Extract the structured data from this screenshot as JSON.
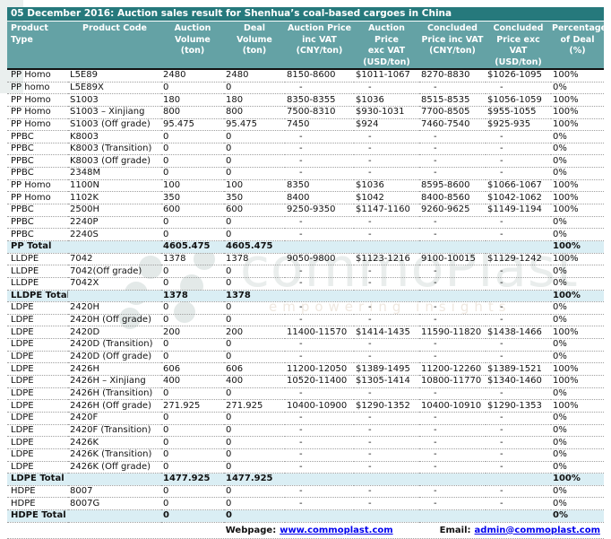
{
  "title": "05 December 2016: Auction sales result for Shenhua’s coal-based cargoes in China",
  "colors": {
    "title_bar": "#26797c",
    "header_bg": "#64a2a5",
    "total_bg": "#daeef4",
    "link": "#0000ee"
  },
  "watermark": {
    "brand": "commoPlast",
    "tagline": "empowering insights"
  },
  "table": {
    "columns": [
      "Product\nType",
      "Product Code",
      "Auction\nVolume (ton)",
      "Deal\nVolume\n(ton)",
      "Auction Price\ninc VAT\n(CNY/ton)",
      "Auction\nPrice\nexc VAT\n(USD/ton)",
      "Concluded\nPrice inc VAT\n(CNY/ton)",
      "Concluded\nPrice exc VAT\n(USD/ton)",
      "Percentage\nof Deal (%)"
    ],
    "rows": [
      {
        "type": "data",
        "cells": [
          "PP Homo",
          "L5E89",
          "2480",
          "2480",
          "8150-8600",
          "$1011-1067",
          "8270-8830",
          "$1026-1095",
          "100%"
        ]
      },
      {
        "type": "data",
        "cells": [
          "PP homo",
          "L5E89X",
          "0",
          "0",
          "-",
          "-",
          "-",
          "-",
          "0%"
        ]
      },
      {
        "type": "data",
        "cells": [
          "PP Homo",
          "S1003",
          "180",
          "180",
          "8350-8355",
          "$1036",
          "8515-8535",
          "$1056-1059",
          "100%"
        ]
      },
      {
        "type": "data",
        "cells": [
          "PP Homo",
          "S1003 – Xinjiang",
          "800",
          "800",
          "7500-8310",
          "$930-1031",
          "7700-8505",
          "$955-1055",
          "100%"
        ]
      },
      {
        "type": "data",
        "cells": [
          "PP Homo",
          "S1003 (Off grade)",
          "95.475",
          "95.475",
          "7450",
          "$924",
          "7460-7540",
          "$925-935",
          "100%"
        ]
      },
      {
        "type": "data",
        "cells": [
          "PPBC",
          "K8003",
          "0",
          "0",
          "-",
          "-",
          "-",
          "-",
          "0%"
        ]
      },
      {
        "type": "data",
        "cells": [
          "PPBC",
          "K8003 (Transition)",
          "0",
          "0",
          "-",
          "-",
          "-",
          "-",
          "0%"
        ]
      },
      {
        "type": "data",
        "cells": [
          "PPBC",
          "K8003 (Off grade)",
          "0",
          "0",
          "-",
          "-",
          "-",
          "-",
          "0%"
        ]
      },
      {
        "type": "data",
        "cells": [
          "PPBC",
          "2348M",
          "0",
          "0",
          "-",
          "-",
          "-",
          "-",
          "0%"
        ]
      },
      {
        "type": "data",
        "cells": [
          "PP Homo",
          "1100N",
          "100",
          "100",
          "8350",
          "$1036",
          "8595-8600",
          "$1066-1067",
          "100%"
        ]
      },
      {
        "type": "data",
        "cells": [
          "PP Homo",
          "1102K",
          "350",
          "350",
          "8400",
          "$1042",
          "8400-8560",
          "$1042-1062",
          "100%"
        ]
      },
      {
        "type": "data",
        "cells": [
          "PPBC",
          "2500H",
          "600",
          "600",
          "9250-9350",
          "$1147-1160",
          "9260-9625",
          "$1149-1194",
          "100%"
        ]
      },
      {
        "type": "data",
        "cells": [
          "PPBC",
          "2240P",
          "0",
          "0",
          "-",
          "-",
          "-",
          "-",
          "0%"
        ]
      },
      {
        "type": "data",
        "cells": [
          "PPBC",
          "2240S",
          "0",
          "0",
          "-",
          "-",
          "-",
          "-",
          "0%"
        ]
      },
      {
        "type": "total",
        "cells": [
          "PP Total",
          "",
          "4605.475",
          "4605.475",
          "",
          "",
          "",
          "",
          "100%"
        ]
      },
      {
        "type": "data",
        "cells": [
          "LLDPE",
          "7042",
          "1378",
          "1378",
          "9050-9800",
          "$1123-1216",
          "9100-10015",
          "$1129-1242",
          "100%"
        ]
      },
      {
        "type": "data",
        "cells": [
          "LLDPE",
          "7042(Off grade)",
          "0",
          "0",
          "-",
          "-",
          "-",
          "-",
          "0%"
        ]
      },
      {
        "type": "data",
        "cells": [
          "LLDPE",
          "7042X",
          "0",
          "0",
          "-",
          "-",
          "-",
          "-",
          "0%"
        ]
      },
      {
        "type": "total",
        "cells": [
          "LLDPE Total",
          "",
          "1378",
          "1378",
          "",
          "",
          "",
          "",
          "100%"
        ]
      },
      {
        "type": "data",
        "cells": [
          "LDPE",
          "2420H",
          "0",
          "0",
          "-",
          "-",
          "-",
          "-",
          "0%"
        ]
      },
      {
        "type": "data",
        "cells": [
          "LDPE",
          "2420H (Off grade)",
          "0",
          "0",
          "-",
          "-",
          "-",
          "-",
          "0%"
        ]
      },
      {
        "type": "data",
        "cells": [
          "LDPE",
          "2420D",
          "200",
          "200",
          "11400-11570",
          "$1414-1435",
          "11590-11820",
          "$1438-1466",
          "100%"
        ]
      },
      {
        "type": "data",
        "cells": [
          "LDPE",
          "2420D (Transition)",
          "0",
          "0",
          "-",
          "-",
          "-",
          "-",
          "0%"
        ]
      },
      {
        "type": "data",
        "cells": [
          "LDPE",
          "2420D (Off grade)",
          "0",
          "0",
          "-",
          "-",
          "-",
          "-",
          "0%"
        ]
      },
      {
        "type": "data",
        "cells": [
          "LDPE",
          "2426H",
          "606",
          "606",
          "11200-12050",
          "$1389-1495",
          "11200-12260",
          "$1389-1521",
          "100%"
        ]
      },
      {
        "type": "data",
        "cells": [
          "LDPE",
          "2426H – Xinjiang",
          "400",
          "400",
          "10520-11400",
          "$1305-1414",
          "10800-11770",
          "$1340-1460",
          "100%"
        ]
      },
      {
        "type": "data",
        "cells": [
          "LDPE",
          "2426H (Transition)",
          "0",
          "0",
          "-",
          "-",
          "-",
          "-",
          "0%"
        ]
      },
      {
        "type": "data",
        "cells": [
          "LDPE",
          "2426H (Off grade)",
          "271.925",
          "271.925",
          "10400-10900",
          "$1290-1352",
          "10400-10910",
          "$1290-1353",
          "100%"
        ]
      },
      {
        "type": "data",
        "cells": [
          "LDPE",
          "2420F",
          "0",
          "0",
          "-",
          "-",
          "-",
          "-",
          "0%"
        ]
      },
      {
        "type": "data",
        "cells": [
          "LDPE",
          "2420F (Transition)",
          "0",
          "0",
          "-",
          "-",
          "-",
          "-",
          "0%"
        ]
      },
      {
        "type": "data",
        "cells": [
          "LDPE",
          "2426K",
          "0",
          "0",
          "-",
          "-",
          "-",
          "-",
          "0%"
        ]
      },
      {
        "type": "data",
        "cells": [
          "LDPE",
          "2426K (Transition)",
          "0",
          "0",
          "-",
          "-",
          "-",
          "-",
          "0%"
        ]
      },
      {
        "type": "data",
        "cells": [
          "LDPE",
          "2426K (Off grade)",
          "0",
          "0",
          "-",
          "-",
          "-",
          "-",
          "0%"
        ]
      },
      {
        "type": "total",
        "cells": [
          "LDPE Total",
          "",
          "1477.925",
          "1477.925",
          "",
          "",
          "",
          "",
          "100%"
        ]
      },
      {
        "type": "data",
        "cells": [
          "HDPE",
          "8007",
          "0",
          "0",
          "-",
          "-",
          "-",
          "-",
          "0%"
        ]
      },
      {
        "type": "data",
        "cells": [
          "HDPE",
          "8007G",
          "0",
          "0",
          "-",
          "-",
          "-",
          "-",
          "0%"
        ]
      },
      {
        "type": "total",
        "cells": [
          "HDPE Total",
          "",
          "0",
          "0",
          "",
          "",
          "",
          "",
          "0%"
        ]
      }
    ]
  },
  "footer": {
    "webpage_label": "Webpage:",
    "webpage_url": "www.commoplast.com",
    "email_label": "Email:",
    "email_value": "admin@commoplast.com"
  }
}
